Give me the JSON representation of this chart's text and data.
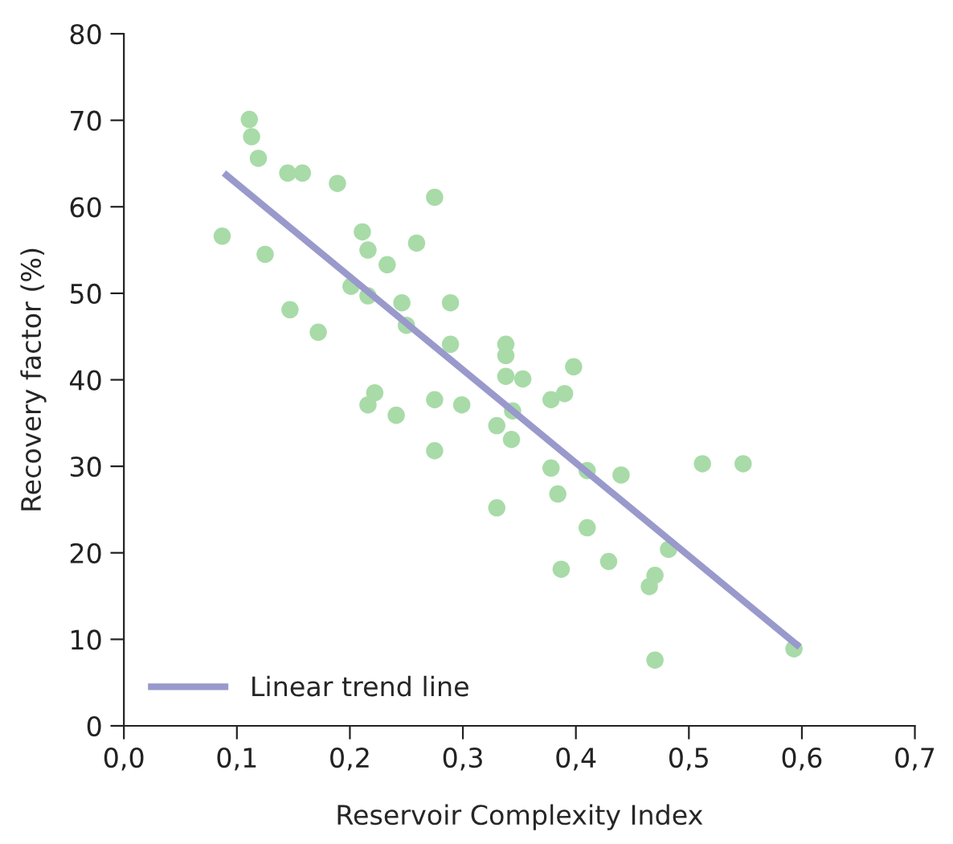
{
  "chart_data": {
    "type": "scatter",
    "xlabel": "Reservoir Complexity Index",
    "ylabel": "Recovery factor (%)",
    "xlim": [
      0,
      0.7
    ],
    "ylim": [
      0,
      80
    ],
    "xticks": [
      {
        "value": 0,
        "label": "0,0"
      },
      {
        "value": 0.1,
        "label": "0,1"
      },
      {
        "value": 0.2,
        "label": "0,2"
      },
      {
        "value": 0.3,
        "label": "0,3"
      },
      {
        "value": 0.4,
        "label": "0,4"
      },
      {
        "value": 0.5,
        "label": "0,5"
      },
      {
        "value": 0.6,
        "label": "0,6"
      },
      {
        "value": 0.7,
        "label": "0,7"
      }
    ],
    "yticks": [
      0,
      10,
      20,
      30,
      40,
      50,
      60,
      70,
      80
    ],
    "grid": false,
    "legend": "bottom left",
    "series": [
      {
        "marker": "circle",
        "color": "#a8dba8",
        "x": [
          0.087,
          0.111,
          0.113,
          0.119,
          0.125,
          0.145,
          0.147,
          0.158,
          0.172,
          0.189,
          0.201,
          0.211,
          0.216,
          0.216,
          0.233,
          0.246,
          0.25,
          0.259,
          0.275,
          0.289,
          0.289,
          0.216,
          0.222,
          0.241,
          0.275,
          0.275,
          0.299,
          0.338,
          0.338,
          0.338,
          0.353,
          0.398,
          0.344,
          0.378,
          0.39,
          0.33,
          0.343,
          0.378,
          0.41,
          0.44,
          0.512,
          0.548,
          0.384,
          0.33,
          0.41,
          0.482,
          0.387,
          0.429,
          0.47,
          0.465,
          0.47,
          0.593
        ],
        "values": [
          56.6,
          70.1,
          68.1,
          65.6,
          54.5,
          63.9,
          48.1,
          63.9,
          45.5,
          62.7,
          50.8,
          57.1,
          55.0,
          49.7,
          53.3,
          48.9,
          46.3,
          55.8,
          61.1,
          48.9,
          44.1,
          37.1,
          38.5,
          35.9,
          37.7,
          31.8,
          37.1,
          44.1,
          42.8,
          40.4,
          40.1,
          41.5,
          36.4,
          37.7,
          38.4,
          34.7,
          33.1,
          29.8,
          29.5,
          29.0,
          30.3,
          30.3,
          26.8,
          25.2,
          22.9,
          20.4,
          18.1,
          19.0,
          17.4,
          16.1,
          7.6,
          8.9
        ]
      },
      {
        "type": "line",
        "name": "Linear trend line",
        "color": "#9999cc",
        "line_style": "solid",
        "x": [
          0.0885,
          0.598
        ],
        "values": [
          63.9,
          9.1
        ]
      }
    ]
  }
}
